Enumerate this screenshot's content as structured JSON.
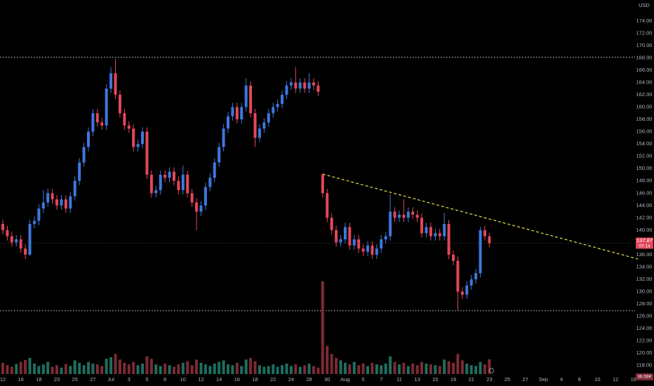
{
  "chart_data": {
    "type": "candlestick",
    "currency": "USD",
    "categories": [
      "12",
      null,
      null,
      null,
      "16",
      null,
      null,
      null,
      "18",
      null,
      null,
      null,
      "23",
      null,
      null,
      null,
      "25",
      null,
      null,
      null,
      "27",
      null,
      null,
      null,
      "Jul",
      null,
      null,
      null,
      "3",
      null,
      null,
      null,
      "5",
      null,
      null,
      null,
      "8",
      null,
      null,
      null,
      "10",
      null,
      null,
      null,
      "12",
      null,
      null,
      null,
      "14",
      null,
      null,
      null,
      "16",
      null,
      null,
      null,
      "18",
      null,
      null,
      null,
      "22",
      null,
      null,
      null,
      "24",
      null,
      null,
      null,
      "28",
      null,
      null,
      null,
      "30",
      null,
      null,
      null,
      "Aug",
      null,
      null,
      null,
      "5",
      null,
      null,
      null,
      "7",
      null,
      null,
      null,
      "11",
      null,
      null,
      null,
      "13",
      null,
      null,
      null,
      "15",
      null,
      null,
      null,
      "19",
      null,
      null,
      null,
      "21",
      null,
      null,
      null,
      "23",
      null,
      null,
      null,
      "25",
      null,
      null,
      null,
      "27",
      null,
      null,
      null,
      "Sep",
      null,
      null,
      null,
      "4",
      null,
      null,
      null,
      "8",
      null,
      null,
      null,
      "10",
      null,
      null,
      null,
      "12",
      null,
      null,
      null,
      "16"
    ],
    "open": [
      141,
      140,
      139,
      138,
      138.5,
      137,
      136,
      141,
      141.5,
      143.5,
      144.5,
      146,
      145,
      144,
      145,
      143.5,
      145.5,
      148,
      151,
      153.5,
      156,
      159,
      157.5,
      157,
      163,
      165.5,
      162,
      159,
      157,
      156.5,
      153.5,
      154,
      156,
      149,
      146,
      146.5,
      149,
      148.5,
      149.5,
      148,
      146.5,
      149,
      146,
      144.5,
      143,
      144,
      147,
      148.5,
      151,
      153.5,
      156.5,
      158.5,
      160,
      158,
      160,
      163.5,
      159,
      155,
      156.5,
      157.5,
      159,
      160,
      160.5,
      162,
      163.5,
      164,
      163,
      164,
      163,
      164,
      163.5,
      149,
      146,
      142,
      140,
      138,
      138.5,
      140.5,
      137.5,
      138.5,
      137,
      136.5,
      137.5,
      136,
      137,
      138.5,
      139,
      143,
      142,
      142.5,
      142,
      143,
      142.5,
      142,
      139.5,
      140.5,
      139,
      139.5,
      139,
      141,
      136,
      135,
      130,
      129.5,
      131,
      132,
      133,
      140,
      139,
      null,
      null,
      null,
      null,
      null,
      null,
      null,
      null,
      null,
      null,
      null,
      null,
      null,
      null,
      null,
      null,
      null,
      null,
      null,
      null,
      null,
      null,
      null,
      null,
      null,
      null,
      null,
      null,
      null,
      null,
      null,
      null
    ],
    "high": [
      141.7,
      140.7,
      139.7,
      139.2,
      139.2,
      137.7,
      141.7,
      142.2,
      144.2,
      146.5,
      146.7,
      146.7,
      145.7,
      145.7,
      145.7,
      146.2,
      148.7,
      151.7,
      154.2,
      156.7,
      159.7,
      159.7,
      158.2,
      163.7,
      166.5,
      167.8,
      162.7,
      159.7,
      157.7,
      157.2,
      154.7,
      156.7,
      156.7,
      149.7,
      147.2,
      149.7,
      149.7,
      150.2,
      150.2,
      148.7,
      150.5,
      149.7,
      146.7,
      145.2,
      144.7,
      147.7,
      149.2,
      151.7,
      154.2,
      157.2,
      159.2,
      160.7,
      160.7,
      160.7,
      164.7,
      164.2,
      159.7,
      157.2,
      158.2,
      159.7,
      160.7,
      161.2,
      162.7,
      164.2,
      164.7,
      166.5,
      164.7,
      164.7,
      165.5,
      164.7,
      164.2,
      149.3,
      146.7,
      142.7,
      140.7,
      139.2,
      141.2,
      141.2,
      139.2,
      139.2,
      137.7,
      138.2,
      138.2,
      137.7,
      139.2,
      139.7,
      145.8,
      143.7,
      143.2,
      145,
      143.7,
      143.7,
      143.2,
      142.7,
      141.2,
      141.2,
      140.2,
      140.2,
      142.8,
      141.7,
      136.7,
      135.7,
      130.7,
      131.7,
      132.7,
      133.7,
      140.5,
      140.7,
      139.5,
      null,
      null,
      null,
      null,
      null,
      null,
      null,
      null,
      null,
      null,
      null,
      null,
      null,
      null,
      null,
      null,
      null,
      null,
      null,
      null,
      null,
      null,
      null,
      null,
      null,
      null,
      null,
      null,
      null,
      null,
      null,
      null
    ],
    "low": [
      139.3,
      138.3,
      137.3,
      137.3,
      136.3,
      135.3,
      135.8,
      140.3,
      140.8,
      142.8,
      143.8,
      144.3,
      143.3,
      143.3,
      142.8,
      142.8,
      144.8,
      147.3,
      150.3,
      152.8,
      155.3,
      156.8,
      156.3,
      156.3,
      162.3,
      161.3,
      158.3,
      156.3,
      155.8,
      152.8,
      152.8,
      153.3,
      148.3,
      145.3,
      145.3,
      145.8,
      147.8,
      147.8,
      147.3,
      145.8,
      145.8,
      145.3,
      143.8,
      140,
      142.3,
      143.3,
      146.3,
      147.8,
      150.3,
      152.8,
      155.8,
      157.8,
      157.3,
      157.3,
      159.3,
      158.3,
      153.5,
      154.3,
      155.8,
      156.8,
      158.3,
      159.3,
      159.8,
      161.3,
      162.8,
      162.3,
      162.3,
      162.3,
      162.3,
      162.8,
      161.8,
      145.3,
      141.3,
      139.3,
      137.3,
      137.3,
      137.8,
      136.8,
      136.8,
      136.3,
      135.8,
      135.8,
      135.3,
      135.3,
      136.3,
      137.8,
      138.3,
      141.3,
      141.3,
      141.3,
      141.3,
      141.8,
      141.3,
      138.8,
      138.8,
      138.3,
      138.3,
      138.3,
      138.3,
      135.3,
      134.3,
      127,
      128.8,
      128.8,
      130.3,
      131.3,
      132.3,
      138.3,
      137.2,
      null,
      null,
      null,
      null,
      null,
      null,
      null,
      null,
      null,
      null,
      null,
      null,
      null,
      null,
      null,
      null,
      null,
      null,
      null,
      null,
      null,
      null,
      null,
      null,
      null,
      null,
      null,
      null,
      null,
      null,
      null,
      null
    ],
    "close": [
      140,
      139,
      138,
      138.5,
      137,
      136,
      141,
      141.5,
      143.5,
      144.5,
      146,
      145,
      144,
      145,
      143.5,
      145.5,
      148,
      151,
      153.5,
      156,
      159,
      157.5,
      157,
      163,
      165.5,
      162,
      159,
      157,
      156.5,
      153.5,
      154,
      156,
      149,
      146,
      146.5,
      149,
      148.5,
      149.5,
      148,
      146.5,
      149,
      146,
      144.5,
      143,
      144,
      147,
      148.5,
      151,
      153.5,
      156.5,
      158.5,
      160,
      158,
      160,
      163.5,
      159,
      155,
      156.5,
      157.5,
      159,
      160,
      160.5,
      162,
      163.5,
      164,
      163,
      164,
      163,
      164,
      163.5,
      162.5,
      146,
      142,
      140,
      138,
      138.5,
      140.5,
      137.5,
      138.5,
      137,
      136.5,
      137.5,
      136,
      137,
      138.5,
      139,
      143,
      142,
      142.5,
      142,
      143,
      142.5,
      142,
      139.5,
      140.5,
      139,
      139.5,
      139,
      141,
      136,
      135,
      130,
      129.5,
      131,
      132,
      133,
      140,
      139,
      137.87,
      null,
      null,
      null,
      null,
      null,
      null,
      null,
      null,
      null,
      null,
      null,
      null,
      null,
      null,
      null,
      null,
      null,
      null,
      null,
      null,
      null,
      null,
      null,
      null,
      null,
      null,
      null,
      null,
      null,
      null,
      null,
      null
    ],
    "volume": [
      28,
      22,
      18,
      25,
      30,
      35,
      40,
      26,
      20,
      24,
      30,
      18,
      22,
      16,
      25,
      20,
      34,
      28,
      22,
      30,
      26,
      24,
      20,
      38,
      42,
      50,
      36,
      28,
      24,
      30,
      22,
      26,
      44,
      38,
      24,
      20,
      26,
      22,
      18,
      24,
      28,
      32,
      22,
      36,
      28,
      24,
      20,
      26,
      30,
      34,
      24,
      22,
      28,
      20,
      36,
      40,
      32,
      22,
      18,
      20,
      24,
      18,
      22,
      26,
      20,
      24,
      18,
      22,
      26,
      20,
      16,
      230,
      70,
      50,
      40,
      34,
      28,
      24,
      30,
      22,
      26,
      20,
      28,
      24,
      22,
      26,
      44,
      30,
      24,
      28,
      20,
      26,
      22,
      30,
      26,
      24,
      22,
      20,
      36,
      32,
      28,
      50,
      34,
      26,
      22,
      20,
      30,
      24,
      36.59,
      null,
      null,
      null,
      null,
      null,
      null,
      null,
      null,
      null,
      null,
      null,
      null,
      null,
      null,
      null,
      null,
      null,
      null,
      null,
      null,
      null,
      null,
      null,
      null,
      null,
      null,
      null,
      null,
      null,
      null,
      null,
      null
    ],
    "up_color": "#3d78df",
    "down_color": "#e2475a",
    "volume_up_color": "#1e6e5f",
    "volume_down_color": "#7c2a33",
    "ylim": [
      116.6,
      177.4
    ],
    "yticks": [
      {
        "value": 118,
        "label": "118.00"
      },
      {
        "value": 120,
        "label": "120.00"
      },
      {
        "value": 122,
        "label": "122.00"
      },
      {
        "value": 124,
        "label": "124.00"
      },
      {
        "value": 126,
        "label": "126.00"
      },
      {
        "value": 128,
        "label": "128.00"
      },
      {
        "value": 130,
        "label": "130.00"
      },
      {
        "value": 132,
        "label": "132.00"
      },
      {
        "value": 134,
        "label": "134.00"
      },
      {
        "value": 136,
        "label": "136.00"
      },
      {
        "value": 138,
        "label": "138.00"
      },
      {
        "value": 140,
        "label": "140.00"
      },
      {
        "value": 142,
        "label": "142.00"
      },
      {
        "value": 144,
        "label": "144.00"
      },
      {
        "value": 146,
        "label": "146.00"
      },
      {
        "value": 148,
        "label": "148.00"
      },
      {
        "value": 150,
        "label": "150.00"
      },
      {
        "value": 152,
        "label": "152.00"
      },
      {
        "value": 154,
        "label": "154.00"
      },
      {
        "value": 156,
        "label": "156.00"
      },
      {
        "value": 158,
        "label": "158.00"
      },
      {
        "value": 160,
        "label": "160.00"
      },
      {
        "value": 162,
        "label": "162.00"
      },
      {
        "value": 164,
        "label": "164.00"
      },
      {
        "value": 166,
        "label": "166.00"
      },
      {
        "value": 168,
        "label": "168.00"
      },
      {
        "value": 170,
        "label": "170.00"
      },
      {
        "value": 172,
        "label": "172.00"
      },
      {
        "value": 174,
        "label": "174.00"
      }
    ],
    "volume_ylim": [
      0,
      400
    ],
    "levels": [
      168.1,
      126.9
    ],
    "trendline": [
      [
        71,
        149.1
      ],
      [
        141,
        135.3
      ]
    ],
    "last_price_label": "137.87",
    "countdown": "07:14",
    "last_volume_label": "36.59K"
  }
}
